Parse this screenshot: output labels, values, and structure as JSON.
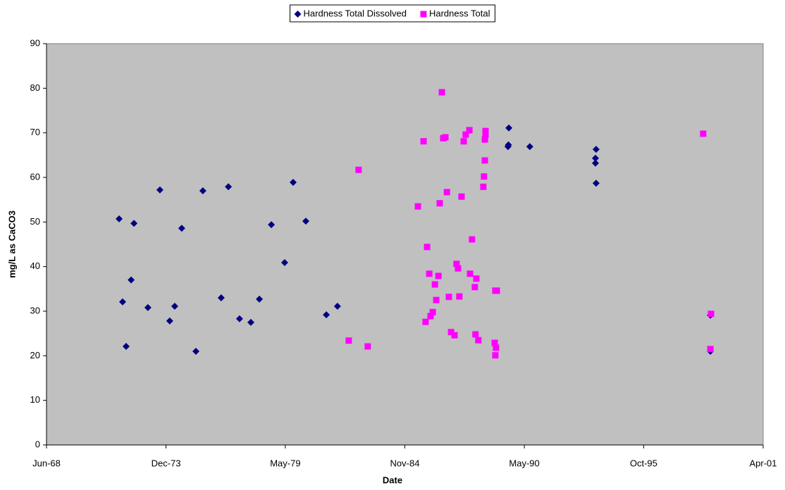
{
  "chart_data": {
    "type": "scatter",
    "y_label": "mg/L as CaCO3",
    "x_label": "Date",
    "legend": "top",
    "plot_background": "#c0c0c0",
    "xlim": [
      1968.45,
      2001.31
    ],
    "xticks": [
      {
        "value": 1968.45,
        "label": "Jun-68"
      },
      {
        "value": 1973.93,
        "label": "Dec-73"
      },
      {
        "value": 1979.4,
        "label": "May-79"
      },
      {
        "value": 1984.88,
        "label": "Nov-84"
      },
      {
        "value": 1990.36,
        "label": "May-90"
      },
      {
        "value": 1995.83,
        "label": "Oct-95"
      },
      {
        "value": 2001.31,
        "label": "Apr-01"
      }
    ],
    "ylim": [
      0,
      90
    ],
    "yticks": [
      0,
      10,
      20,
      30,
      40,
      50,
      60,
      70,
      80,
      90
    ],
    "series": [
      {
        "name": "Hardness Total Dissolved",
        "color": "#000080",
        "marker": "diamond",
        "x": [
          1971.78,
          1971.94,
          1972.1,
          1972.33,
          1972.46,
          1973.1,
          1973.65,
          1974.1,
          1974.33,
          1974.65,
          1975.3,
          1975.62,
          1976.46,
          1976.79,
          1977.3,
          1977.82,
          1978.21,
          1978.76,
          1979.37,
          1979.76,
          1980.34,
          1981.28,
          1981.79,
          1989.65,
          1989.63,
          1989.61,
          1990.61,
          1993.65,
          1993.62,
          1993.62,
          1993.65,
          1998.89,
          1998.89
        ],
        "values": [
          50.7,
          32.1,
          22.1,
          37.0,
          49.7,
          30.8,
          57.2,
          27.8,
          31.1,
          48.6,
          21.0,
          57.0,
          33.0,
          57.9,
          28.3,
          27.5,
          32.7,
          49.4,
          40.9,
          58.9,
          50.2,
          29.2,
          31.1,
          71.1,
          67.3,
          66.9,
          66.9,
          66.3,
          64.3,
          63.2,
          58.7,
          29.1,
          21.0
        ]
      },
      {
        "name": "Hardness Total",
        "color": "#ff00ff",
        "marker": "square",
        "x": [
          1982.31,
          1982.76,
          1983.18,
          1985.48,
          1985.74,
          1985.83,
          1985.9,
          1986.0,
          1986.06,
          1986.16,
          1986.26,
          1986.32,
          1986.42,
          1986.48,
          1986.58,
          1986.64,
          1986.74,
          1986.81,
          1986.9,
          1987.0,
          1987.16,
          1987.25,
          1987.32,
          1987.38,
          1987.48,
          1987.58,
          1987.67,
          1987.84,
          1987.87,
          1987.96,
          1988.09,
          1988.12,
          1988.16,
          1988.25,
          1988.48,
          1988.51,
          1988.55,
          1988.55,
          1988.58,
          1988.58,
          1989.0,
          1989.06,
          1989.03,
          1989.03,
          1989.1,
          1998.56,
          1998.92,
          1998.89
        ],
        "values": [
          23.4,
          61.7,
          22.1,
          53.5,
          68.1,
          27.6,
          44.4,
          38.4,
          28.9,
          29.8,
          36.0,
          32.5,
          37.9,
          54.2,
          79.1,
          68.8,
          69.0,
          56.7,
          33.2,
          25.3,
          24.6,
          40.6,
          39.6,
          33.3,
          55.7,
          68.1,
          69.6,
          70.6,
          38.4,
          46.1,
          35.4,
          24.8,
          37.3,
          23.5,
          57.9,
          60.2,
          63.8,
          68.5,
          69.5,
          70.4,
          22.9,
          21.8,
          20.1,
          34.6,
          34.6,
          69.8,
          29.4,
          21.5
        ]
      }
    ]
  }
}
